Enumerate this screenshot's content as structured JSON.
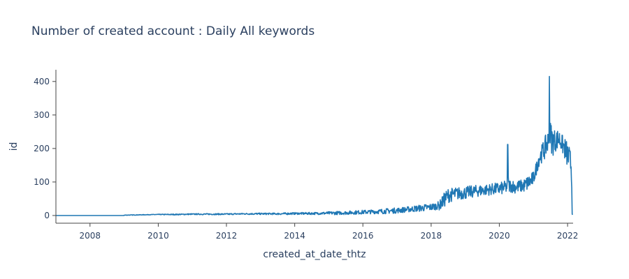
{
  "chart_data": {
    "type": "line",
    "title": "Number of created account : Daily All keywords",
    "xlabel": "created_at_date_thtz",
    "ylabel": "id",
    "x_ticks": [
      "2008",
      "2010",
      "2012",
      "2014",
      "2016",
      "2018",
      "2020",
      "2022"
    ],
    "y_ticks": [
      "0",
      "100",
      "200",
      "300",
      "400"
    ],
    "x_range": [
      "2007-01-01",
      "2022-03-01"
    ],
    "y_range": [
      -23,
      435
    ],
    "grid": false,
    "legend": "none",
    "line_color": "#1f77b4",
    "series": [
      {
        "x": [
          "2007-01-01",
          "2008-01-01",
          "2009-01-01",
          "2009-07-01",
          "2010-01-01",
          "2010-07-01",
          "2011-01-01",
          "2011-07-01",
          "2012-01-01",
          "2012-07-01",
          "2013-01-01",
          "2013-07-01",
          "2014-01-01",
          "2014-07-01",
          "2015-01-01",
          "2015-07-01",
          "2016-01-01",
          "2016-07-01",
          "2017-01-01",
          "2017-07-01",
          "2018-01-01",
          "2018-04-01",
          "2018-07-01",
          "2018-10-01",
          "2019-01-01",
          "2019-04-01",
          "2019-07-01",
          "2019-10-01",
          "2020-01-01",
          "2020-03-25",
          "2020-04-01",
          "2020-04-08",
          "2020-07-01",
          "2020-10-01",
          "2021-01-01",
          "2021-03-01",
          "2021-05-01",
          "2021-06-15",
          "2021-06-20",
          "2021-06-25",
          "2021-08-01",
          "2021-10-01",
          "2021-12-01",
          "2022-01-15",
          "2022-02-10",
          "2022-02-22"
        ],
        "values": [
          0,
          0,
          1,
          2,
          3,
          3,
          4,
          4,
          4,
          5,
          5,
          5,
          6,
          6,
          7,
          8,
          10,
          12,
          15,
          20,
          25,
          30,
          60,
          65,
          68,
          72,
          75,
          78,
          80,
          85,
          212,
          90,
          85,
          90,
          110,
          170,
          200,
          225,
          415,
          240,
          220,
          230,
          200,
          170,
          150,
          2
        ],
        "peaks": [
          [
            "2009-09-01",
            6
          ],
          [
            "2010-06-01",
            8
          ],
          [
            "2011-05-01",
            9
          ],
          [
            "2012-08-01",
            10
          ],
          [
            "2013-10-01",
            12
          ],
          [
            "2014-09-01",
            14
          ],
          [
            "2015-03-01",
            18
          ],
          [
            "2016-05-01",
            22
          ],
          [
            "2016-09-01",
            28
          ],
          [
            "2017-05-01",
            32
          ],
          [
            "2017-11-01",
            42
          ],
          [
            "2018-03-01",
            48
          ],
          [
            "2018-06-01",
            95
          ],
          [
            "2019-02-01",
            98
          ],
          [
            "2019-08-01",
            100
          ],
          [
            "2020-01-15",
            110
          ],
          [
            "2020-09-01",
            112
          ],
          [
            "2021-01-15",
            140
          ],
          [
            "2021-04-15",
            230
          ],
          [
            "2021-07-10",
            300
          ],
          [
            "2021-09-01",
            262
          ],
          [
            "2021-12-20",
            255
          ]
        ],
        "troughs": [
          [
            "2016-03-01",
            4
          ],
          [
            "2017-02-01",
            7
          ],
          [
            "2017-09-01",
            10
          ],
          [
            "2018-02-01",
            15
          ],
          [
            "2018-09-01",
            40
          ],
          [
            "2019-05-01",
            48
          ],
          [
            "2019-11-01",
            55
          ],
          [
            "2020-06-01",
            55
          ],
          [
            "2020-11-01",
            58
          ],
          [
            "2021-01-01",
            75
          ],
          [
            "2021-03-15",
            130
          ],
          [
            "2021-06-01",
            160
          ],
          [
            "2021-08-20",
            170
          ],
          [
            "2021-11-01",
            180
          ],
          [
            "2022-01-01",
            140
          ]
        ]
      }
    ]
  }
}
